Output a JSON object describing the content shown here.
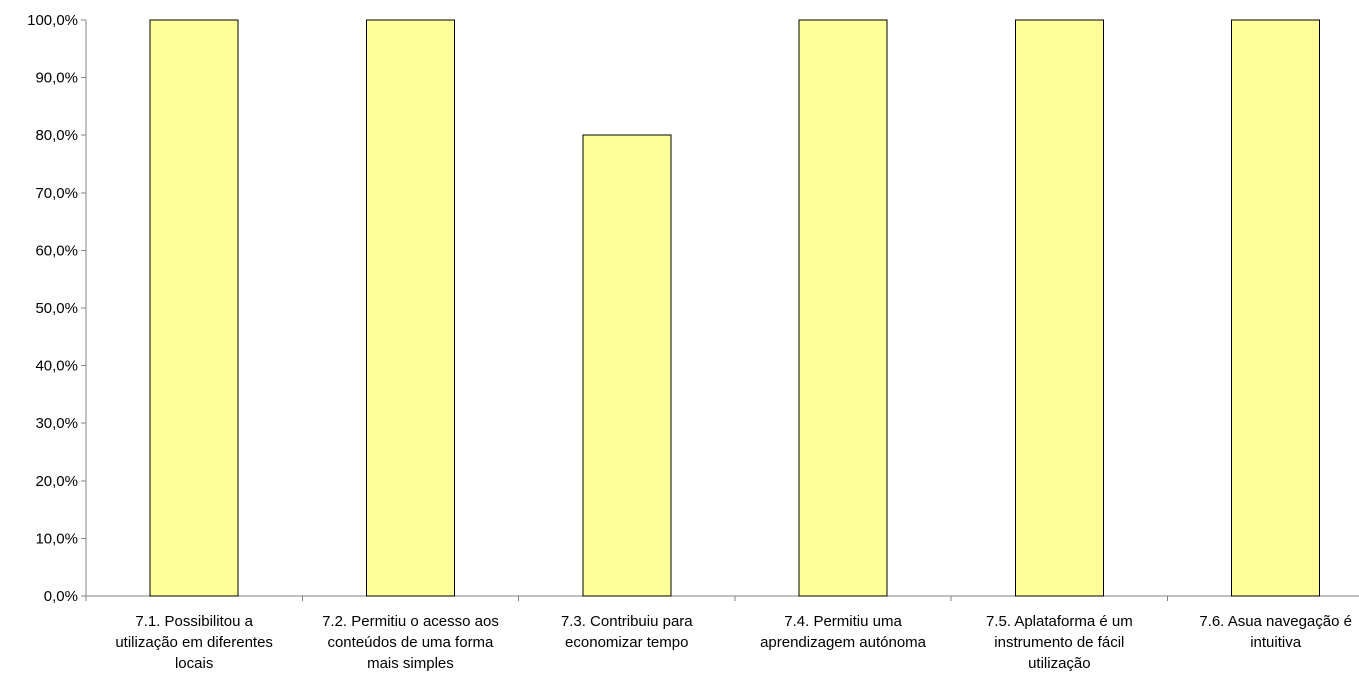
{
  "chart_data": {
    "type": "bar",
    "categories": [
      "7.1. Possibilitou a utilização em diferentes locais",
      "7.2. Permitiu o acesso aos conteúdos de uma forma mais simples",
      "7.3. Contribuiu para economizar tempo",
      "7.4. Permitiu uma aprendizagem autónoma",
      "7.5. Aplataforma é um instrumento de fácil utilização",
      "7.6. Asua navegação é intuitiva"
    ],
    "category_lines": [
      [
        "7.1. Possibilitou a",
        "utilização em diferentes",
        "locais"
      ],
      [
        "7.2. Permitiu o acesso aos",
        "conteúdos de uma forma",
        "mais simples"
      ],
      [
        "7.3. Contribuiu para",
        "economizar tempo"
      ],
      [
        "7.4. Permitiu uma",
        "aprendizagem autónoma"
      ],
      [
        "7.5. Aplataforma é um",
        "instrumento de fácil",
        "utilização"
      ],
      [
        "7.6. Asua navegação é",
        "intuitiva"
      ]
    ],
    "values": [
      100,
      100,
      80,
      100,
      100,
      100
    ],
    "ylim": [
      0,
      100
    ],
    "yticks": [
      "0,0%",
      "10,0%",
      "20,0%",
      "30,0%",
      "40,0%",
      "50,0%",
      "60,0%",
      "70,0%",
      "80,0%",
      "90,0%",
      "100,0%"
    ],
    "title": "",
    "xlabel": "",
    "ylabel": "",
    "grid": false,
    "bar_color": "#FFFF99",
    "bar_edge_color": "#000000",
    "axis_color": "#808080"
  }
}
